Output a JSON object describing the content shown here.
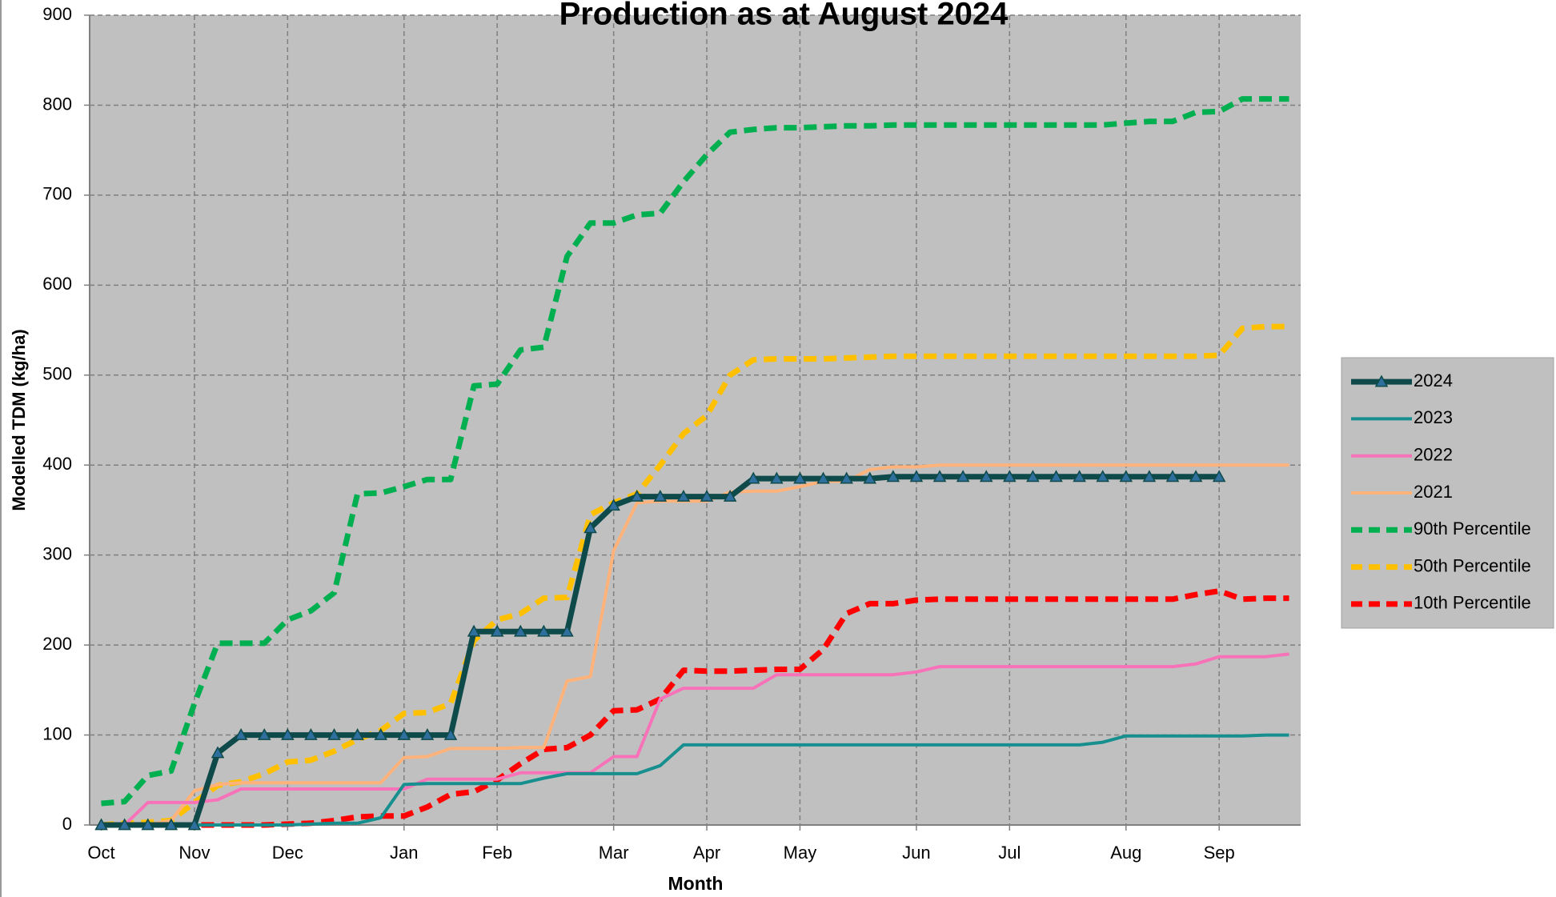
{
  "chart_data": {
    "type": "line",
    "title": "Production as at August 2024",
    "x_label": "Month",
    "y_label": "Modelled TDM (kg/ha)",
    "categories": [
      "Oct",
      null,
      null,
      null,
      "Nov",
      null,
      null,
      null,
      "Dec",
      null,
      null,
      null,
      null,
      "Jan",
      null,
      null,
      null,
      "Feb",
      null,
      null,
      null,
      null,
      "Mar",
      null,
      null,
      null,
      "Apr",
      null,
      null,
      null,
      "May",
      null,
      null,
      null,
      null,
      "Jun",
      null,
      null,
      null,
      "Jul",
      null,
      null,
      null,
      null,
      "Aug",
      null,
      null,
      null,
      "Sep",
      null,
      null,
      null
    ],
    "ylim": [
      0,
      900
    ],
    "yticks": [
      0,
      100,
      200,
      300,
      400,
      500,
      600,
      700,
      800,
      900
    ],
    "grid": true,
    "legend": "right",
    "series": [
      {
        "name": "2024",
        "color": "#0f4a4a",
        "marker": "triangle",
        "marker_color": "#2e6f9e",
        "dashed": false,
        "width": 7,
        "values": [
          0,
          0,
          0,
          0,
          0,
          80,
          100,
          100,
          100,
          100,
          100,
          100,
          100,
          100,
          100,
          100,
          215,
          215,
          215,
          215,
          215,
          330,
          355,
          365,
          365,
          365,
          365,
          365,
          385,
          385,
          385,
          385,
          385,
          385,
          387,
          387,
          387,
          387,
          387,
          387,
          387,
          387,
          387,
          387,
          387,
          387,
          387,
          387,
          387,
          null,
          null,
          null
        ]
      },
      {
        "name": "2023",
        "color": "#178f8f",
        "dashed": false,
        "width": 4,
        "values": [
          0,
          0,
          0,
          0,
          0,
          0,
          0,
          0,
          0,
          1,
          2,
          2,
          8,
          45,
          46,
          46,
          46,
          46,
          46,
          52,
          57,
          57,
          57,
          57,
          66,
          89,
          89,
          89,
          89,
          89,
          89,
          89,
          89,
          89,
          89,
          89,
          89,
          89,
          89,
          89,
          89,
          89,
          89,
          92,
          99,
          99,
          99,
          99,
          99,
          99,
          100,
          100
        ]
      },
      {
        "name": "2022",
        "color": "#f772b8",
        "dashed": false,
        "width": 4,
        "values": [
          0,
          0,
          25,
          25,
          25,
          28,
          40,
          40,
          40,
          40,
          40,
          40,
          40,
          40,
          51,
          51,
          51,
          51,
          58,
          58,
          58,
          58,
          76,
          76,
          140,
          152,
          152,
          152,
          152,
          167,
          167,
          167,
          167,
          167,
          167,
          170,
          176,
          176,
          176,
          176,
          176,
          176,
          176,
          176,
          176,
          176,
          176,
          179,
          187,
          187,
          187,
          190
        ]
      },
      {
        "name": "2021",
        "color": "#ffb27a",
        "dashed": false,
        "width": 4,
        "values": [
          0,
          0,
          0,
          5,
          38,
          45,
          47,
          47,
          47,
          47,
          47,
          47,
          47,
          75,
          76,
          85,
          85,
          85,
          86,
          86,
          160,
          165,
          305,
          358,
          360,
          360,
          360,
          370,
          371,
          371,
          376,
          382,
          382,
          395,
          398,
          398,
          400,
          400,
          400,
          400,
          400,
          400,
          400,
          400,
          400,
          400,
          400,
          400,
          400,
          400,
          400,
          400
        ]
      },
      {
        "name": "90th Percentile",
        "color": "#00b050",
        "dashed": true,
        "width": 7,
        "values": [
          24,
          26,
          55,
          60,
          135,
          202,
          202,
          202,
          228,
          238,
          258,
          368,
          369,
          376,
          384,
          384,
          488,
          490,
          528,
          531,
          632,
          669,
          669,
          678,
          680,
          715,
          745,
          770,
          773,
          775,
          775,
          776,
          777,
          777,
          778,
          778,
          778,
          778,
          778,
          778,
          778,
          778,
          778,
          778,
          780,
          782,
          782,
          792,
          793,
          807,
          807,
          807
        ]
      },
      {
        "name": "50th Percentile",
        "color": "#ffc000",
        "dashed": true,
        "width": 7,
        "values": [
          0,
          2,
          3,
          5,
          25,
          44,
          48,
          57,
          70,
          72,
          82,
          95,
          105,
          124,
          125,
          135,
          205,
          228,
          235,
          252,
          253,
          345,
          358,
          368,
          400,
          435,
          455,
          500,
          517,
          518,
          518,
          518,
          519,
          520,
          521,
          521,
          521,
          521,
          521,
          521,
          521,
          521,
          521,
          521,
          521,
          521,
          521,
          521,
          522,
          552,
          554,
          554
        ]
      },
      {
        "name": "10th Percentile",
        "color": "#ff0000",
        "dashed": true,
        "width": 7,
        "values": [
          0,
          0,
          0,
          0,
          0,
          0,
          0,
          0,
          1,
          2,
          5,
          9,
          10,
          10,
          20,
          34,
          37,
          50,
          68,
          84,
          86,
          100,
          127,
          128,
          140,
          172,
          171,
          171,
          172,
          173,
          173,
          195,
          235,
          246,
          246,
          250,
          251,
          251,
          251,
          251,
          251,
          251,
          251,
          251,
          251,
          251,
          251,
          256,
          260,
          251,
          252,
          252
        ]
      }
    ]
  }
}
